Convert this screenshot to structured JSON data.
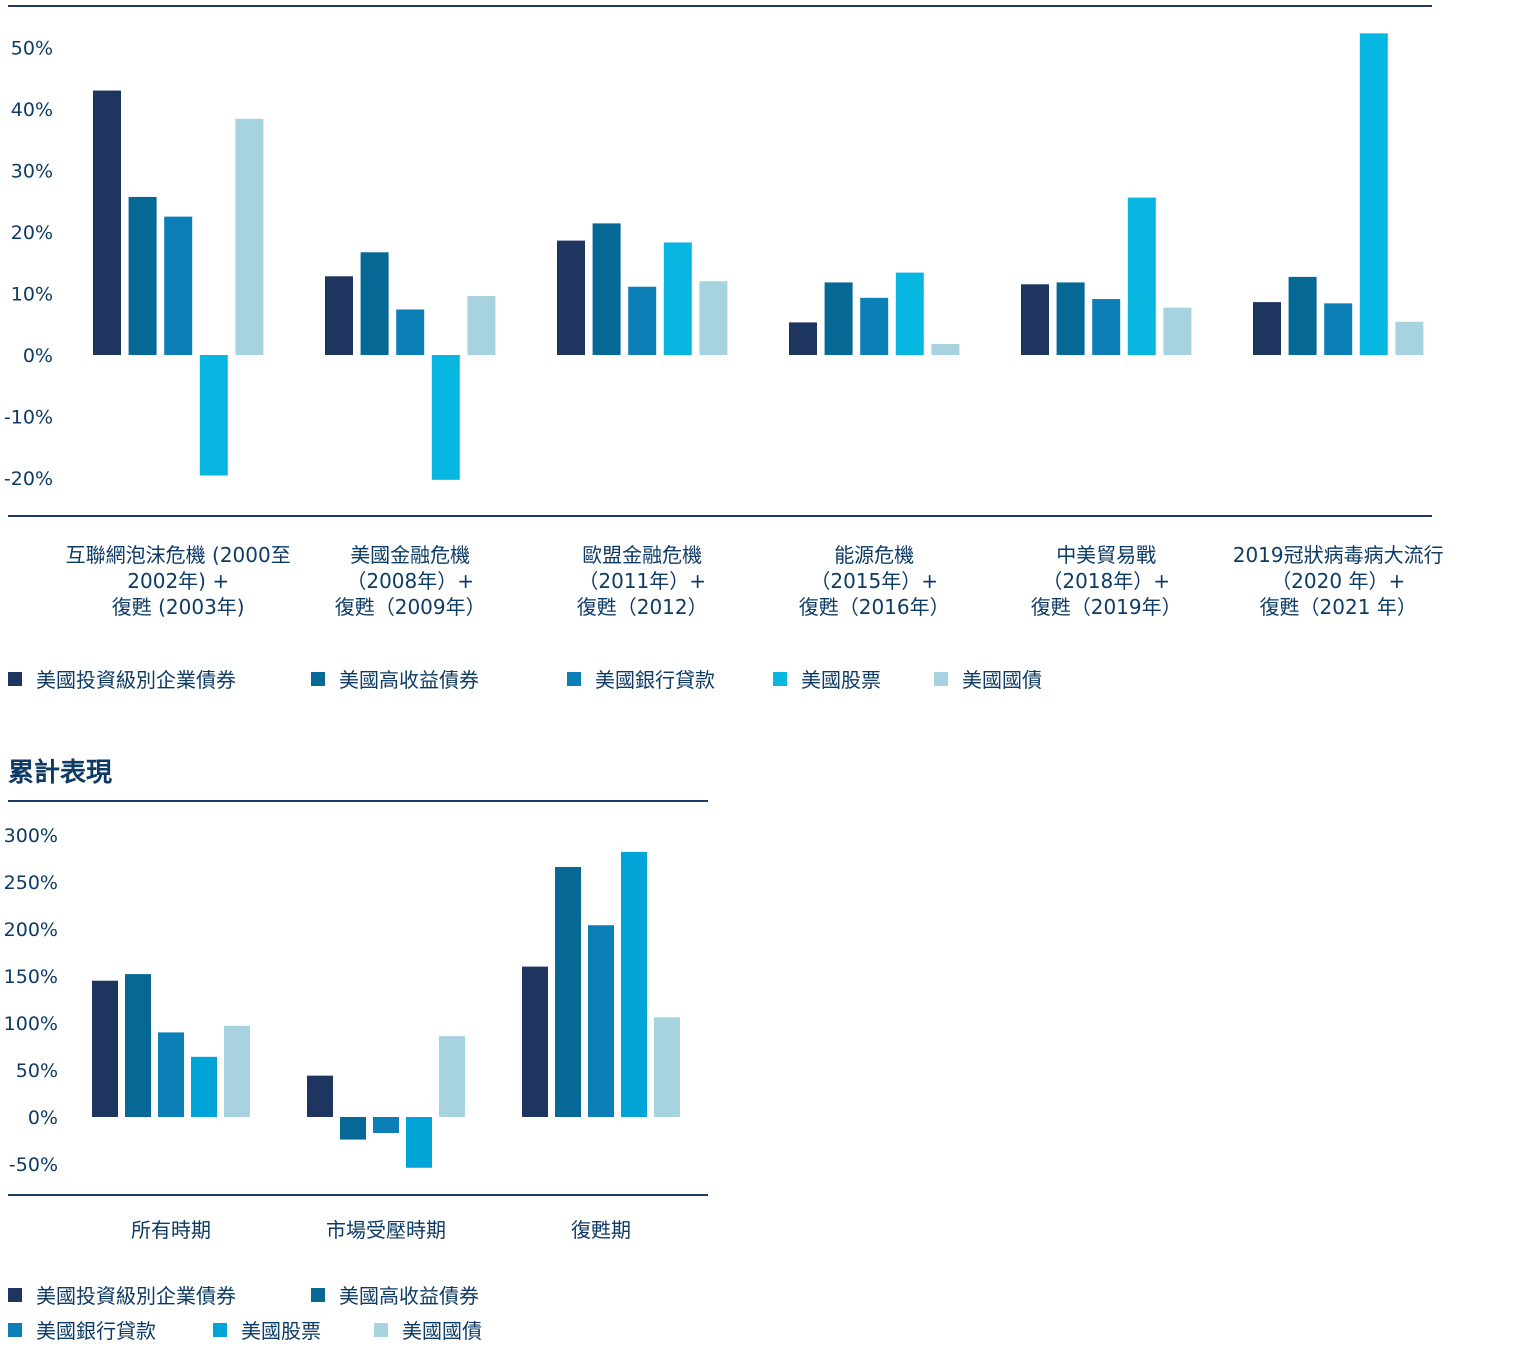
{
  "colors": {
    "text": "#0d3b66",
    "rule": "#1d3a63",
    "series": [
      "#1e3560",
      "#056895",
      "#0b7fb6",
      "#08b6e2",
      "#a7d3e0"
    ],
    "series_cumulative": [
      "#1e3560",
      "#056895",
      "#0b7fb6",
      "#01a4d6",
      "#a7d3e0"
    ]
  },
  "chart_data": [
    {
      "type": "bar",
      "title": "",
      "ylim": [
        -25,
        55
      ],
      "yticks": [
        "50%",
        "40%",
        "30%",
        "20%",
        "10%",
        "0%",
        "-10%",
        "-20%"
      ],
      "ytick_values": [
        50,
        40,
        30,
        20,
        10,
        0,
        -10,
        -20
      ],
      "categories": [
        [
          "互聯網泡沫危機 (2000至",
          "2002年) +",
          "復甦 (2003年)"
        ],
        [
          "美國金融危機",
          "（2008年）+",
          "復甦（2009年）"
        ],
        [
          "歐盟金融危機",
          "（2011年）+",
          "復甦（2012）"
        ],
        [
          "能源危機",
          "（2015年）+",
          "復甦（2016年）"
        ],
        [
          "中美貿易戰",
          "（2018年）+",
          "復甦（2019年）"
        ],
        [
          "2019冠狀病毒病大流行",
          "（2020 年）+",
          "復甦（2021 年）"
        ]
      ],
      "series": [
        {
          "name": "美國投資級別企業債券",
          "values": [
            43,
            12.8,
            18.6,
            5.3,
            11.5,
            8.6
          ]
        },
        {
          "name": "美國高收益債券",
          "values": [
            25.7,
            16.7,
            21.4,
            11.8,
            11.8,
            12.7
          ]
        },
        {
          "name": "美國銀行貸款",
          "values": [
            22.5,
            7.4,
            11.1,
            9.3,
            9.1,
            8.4
          ]
        },
        {
          "name": "美國股票",
          "values": [
            -19.6,
            -20.3,
            18.3,
            13.4,
            25.6,
            52.3
          ]
        },
        {
          "name": "美國國債",
          "values": [
            38.4,
            9.6,
            12,
            1.8,
            7.7,
            5.4
          ]
        }
      ],
      "legend": [
        "美國投資級別企業債券",
        "美國高收益債券",
        "美國銀行貸款",
        "美國股票",
        "美國國債"
      ],
      "legend_position": "bottom"
    },
    {
      "type": "bar",
      "title": "累計表現",
      "ylim": [
        -60,
        310
      ],
      "yticks": [
        "300%",
        "250%",
        "200%",
        "150%",
        "100%",
        "50%",
        "0%",
        "-50%"
      ],
      "ytick_values": [
        300,
        250,
        200,
        150,
        100,
        50,
        0,
        -50
      ],
      "categories": [
        [
          "所有時期"
        ],
        [
          "市場受壓時期"
        ],
        [
          "復甦期"
        ]
      ],
      "series": [
        {
          "name": "美國投資級別企業債券",
          "values": [
            145,
            44,
            160
          ]
        },
        {
          "name": "美國高收益債券",
          "values": [
            152,
            -24,
            266
          ]
        },
        {
          "name": "美國銀行貸款",
          "values": [
            90,
            -17,
            204
          ]
        },
        {
          "name": "美國股票",
          "values": [
            64,
            -54,
            282
          ]
        },
        {
          "name": "美國國債",
          "values": [
            97,
            86,
            106
          ]
        }
      ],
      "legend": [
        "美國投資級別企業債券",
        "美國高收益債券",
        "美國銀行貸款",
        "美國股票",
        "美國國債"
      ],
      "legend_position": "bottom"
    }
  ]
}
